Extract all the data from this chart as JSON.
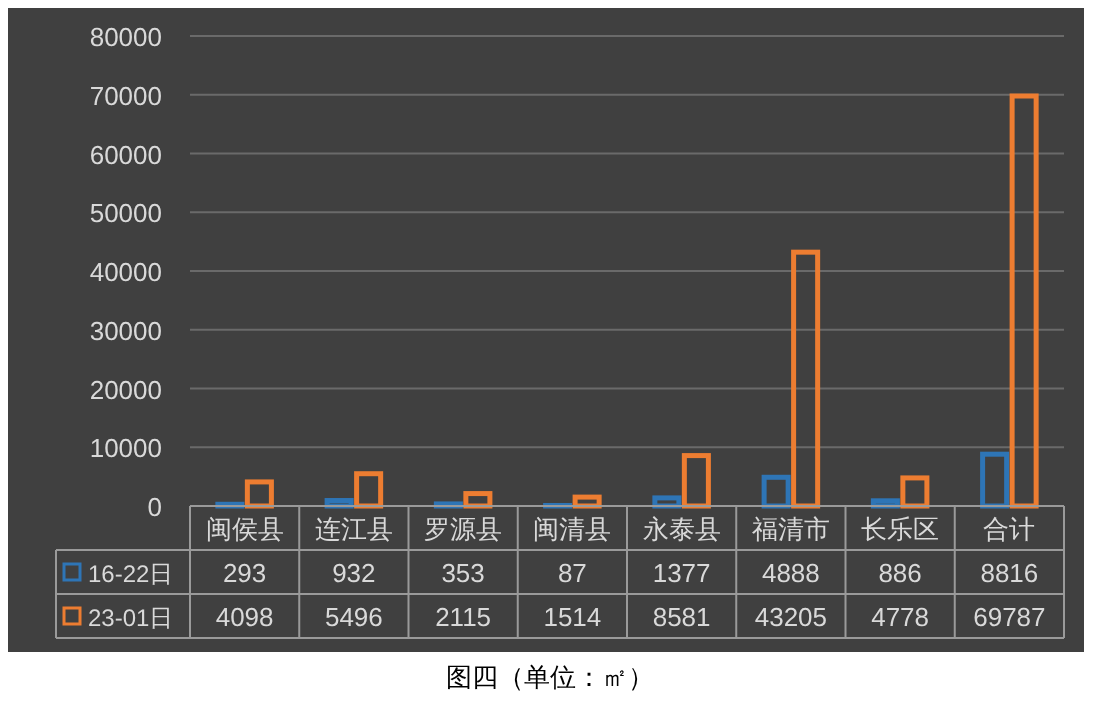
{
  "chart_data": {
    "type": "bar",
    "annotations": [
      "图四（单位：㎡）"
    ],
    "categories": [
      "闽侯县",
      "连江县",
      "罗源县",
      "闽清县",
      "永泰县",
      "福清市",
      "长乐区",
      "合计"
    ],
    "series": [
      {
        "name": "16-22日",
        "color": "#2e75b6",
        "values": [
          293,
          932,
          353,
          87,
          1377,
          4888,
          886,
          8816
        ]
      },
      {
        "name": "23-01日",
        "color": "#ed7d31",
        "values": [
          4098,
          5496,
          2115,
          1514,
          8581,
          43205,
          4778,
          69787
        ]
      }
    ],
    "ylim": [
      0,
      80000
    ],
    "yticks": [
      0,
      10000,
      20000,
      30000,
      40000,
      50000,
      60000,
      70000,
      80000
    ],
    "grid": "y",
    "legend": "bottom",
    "data_labels": true
  }
}
